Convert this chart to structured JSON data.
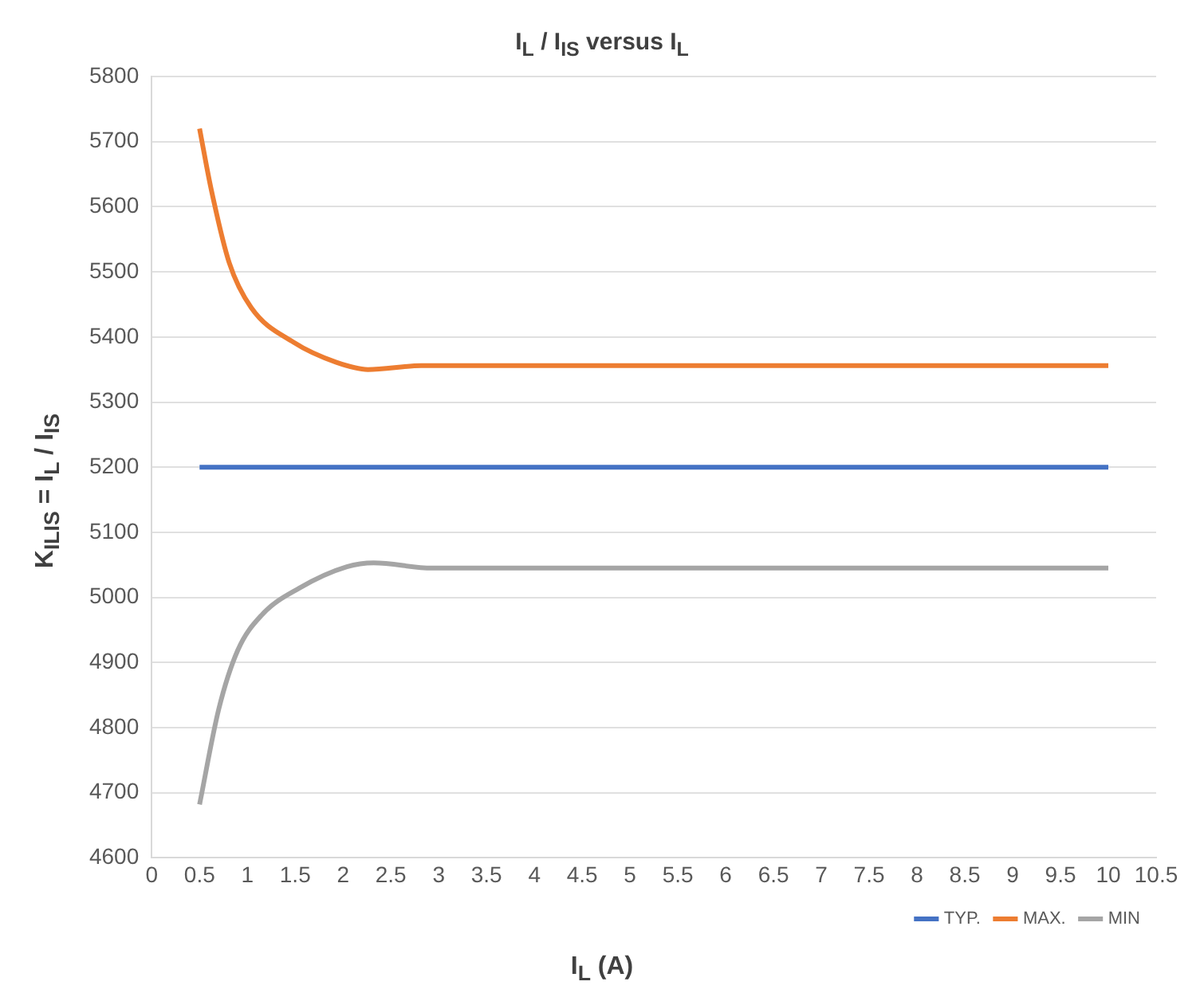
{
  "chart_data": {
    "type": "line",
    "title": "I$_{L}$ / I$_{IS}$ versus I$_{L}$",
    "xlabel": "I$_{L}$ (A)",
    "ylabel": "K$_{ILIS}$ = I$_{L}$ / I$_{IS}$",
    "xlim": [
      0,
      10.5
    ],
    "xticks": [
      0,
      0.5,
      1,
      1.5,
      2,
      2.5,
      3,
      3.5,
      4,
      4.5,
      5,
      5.5,
      6,
      6.5,
      7,
      7.5,
      8,
      8.5,
      9,
      9.5,
      10,
      10.5
    ],
    "ylim": [
      4600,
      5800
    ],
    "yticks": [
      4600,
      4700,
      4800,
      4900,
      5000,
      5100,
      5200,
      5300,
      5400,
      5500,
      5600,
      5700,
      5800
    ],
    "grid": "y",
    "legend": "bottom right",
    "series": [
      {
        "name": "TYP.",
        "color": "#4472c4",
        "x": [
          0.5,
          10
        ],
        "values": [
          5200,
          5200
        ]
      },
      {
        "name": "MAX.",
        "color": "#ed7d31",
        "x": [
          0.5,
          0.62,
          0.81,
          1.04,
          1.48,
          1.93,
          2.26,
          2.82,
          3.5,
          5,
          7,
          10
        ],
        "values": [
          5720,
          5628,
          5514,
          5445,
          5392,
          5361,
          5350,
          5356,
          5356,
          5356,
          5356,
          5356
        ]
      },
      {
        "name": "MIN",
        "color": "#a5a5a5",
        "x": [
          0.5,
          0.7,
          0.9,
          1.15,
          1.54,
          2.04,
          2.32,
          2.93,
          3.5,
          5,
          7,
          10
        ],
        "values": [
          4682,
          4828,
          4919,
          4973,
          5014,
          5047,
          5053,
          5045,
          5045,
          5045,
          5045,
          5045
        ]
      }
    ]
  }
}
